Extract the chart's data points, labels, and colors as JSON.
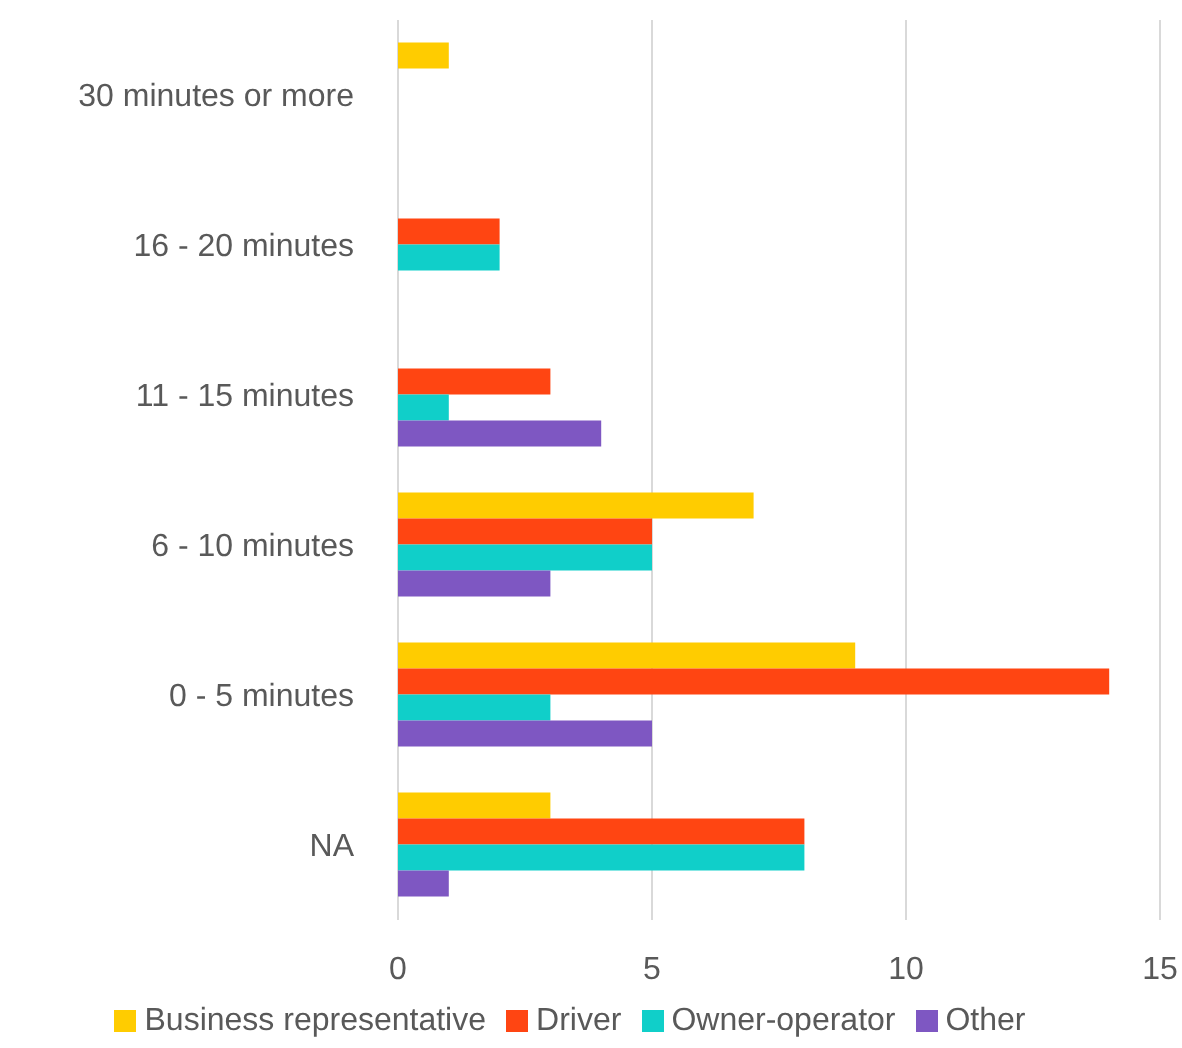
{
  "chart_data": {
    "type": "bar",
    "orientation": "horizontal",
    "categories": [
      "30 minutes or more",
      "16 - 20 minutes",
      "11 - 15 minutes",
      "6 - 10 minutes",
      "0 - 5 minutes",
      "NA"
    ],
    "series": [
      {
        "name": "Business representative",
        "color": "#ffcc00",
        "values": [
          1,
          0,
          0,
          7,
          9,
          3
        ]
      },
      {
        "name": "Driver",
        "color": "#ff4512",
        "values": [
          0,
          2,
          3,
          5,
          14,
          8
        ]
      },
      {
        "name": "Owner-operator",
        "color": "#10cfc9",
        "values": [
          0,
          2,
          1,
          5,
          3,
          8
        ]
      },
      {
        "name": "Other",
        "color": "#7e57c2",
        "values": [
          0,
          0,
          4,
          3,
          5,
          1
        ]
      }
    ],
    "xlim": [
      0,
      15
    ],
    "xticks": [
      0,
      5,
      10,
      15
    ],
    "grid": "x",
    "legend": "bottom"
  }
}
